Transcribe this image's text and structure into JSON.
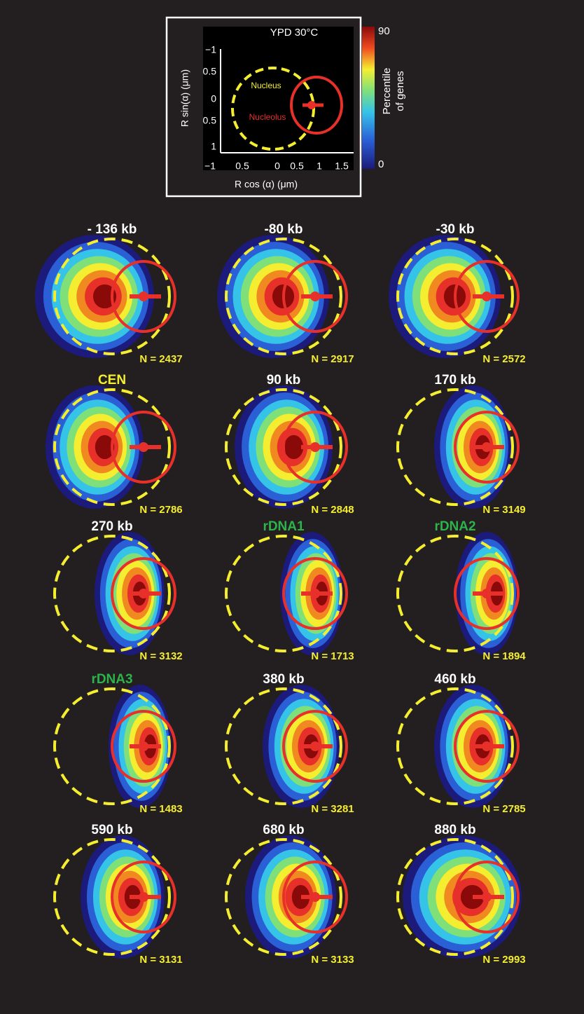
{
  "key": {
    "title": "YPD 30°C",
    "nucleus_label": "Nucleus",
    "nucleolus_label": "Nucleolus",
    "x_axis_label": "R cos (α) (μm)",
    "y_axis_label": "R  sin(α) (μm)",
    "x_tick_labels": [
      "−1",
      "0.5",
      "0",
      "0.5",
      "1",
      "1.5"
    ],
    "y_tick_labels": [
      "−1",
      "0.5",
      "0",
      "0.5",
      "1"
    ],
    "colorbar_title": [
      "Percentile",
      "of genes"
    ],
    "colorbar_max": "90",
    "colorbar_min": "0"
  },
  "panels": [
    {
      "title": "- 136 kb",
      "n": "N = 2437",
      "title_color": "white"
    },
    {
      "title": "-80 kb",
      "n": "N = 2917",
      "title_color": "white"
    },
    {
      "title": "-30 kb",
      "n": "N = 2572",
      "title_color": "white"
    },
    {
      "title": "CEN",
      "n": "N = 2786",
      "title_color": "yellow"
    },
    {
      "title": "90 kb",
      "n": "N = 2848",
      "title_color": "white"
    },
    {
      "title": "170 kb",
      "n": "N = 3149",
      "title_color": "white"
    },
    {
      "title": "270 kb",
      "n": "N = 3132",
      "title_color": "white"
    },
    {
      "title": "rDNA1",
      "n": "N = 1713",
      "title_color": "green"
    },
    {
      "title": "rDNA2",
      "n": "N = 1894",
      "title_color": "green"
    },
    {
      "title": "rDNA3",
      "n": "N = 1483",
      "title_color": "green"
    },
    {
      "title": "380 kb",
      "n": "N = 3281",
      "title_color": "white"
    },
    {
      "title": "460 kb",
      "n": "N = 2785",
      "title_color": "white"
    },
    {
      "title": "590 kb",
      "n": "N = 3131",
      "title_color": "white"
    },
    {
      "title": "680 kb",
      "n": "N = 3133",
      "title_color": "white"
    },
    {
      "title": "880 kb",
      "n": "N = 2993",
      "title_color": "white"
    }
  ]
}
